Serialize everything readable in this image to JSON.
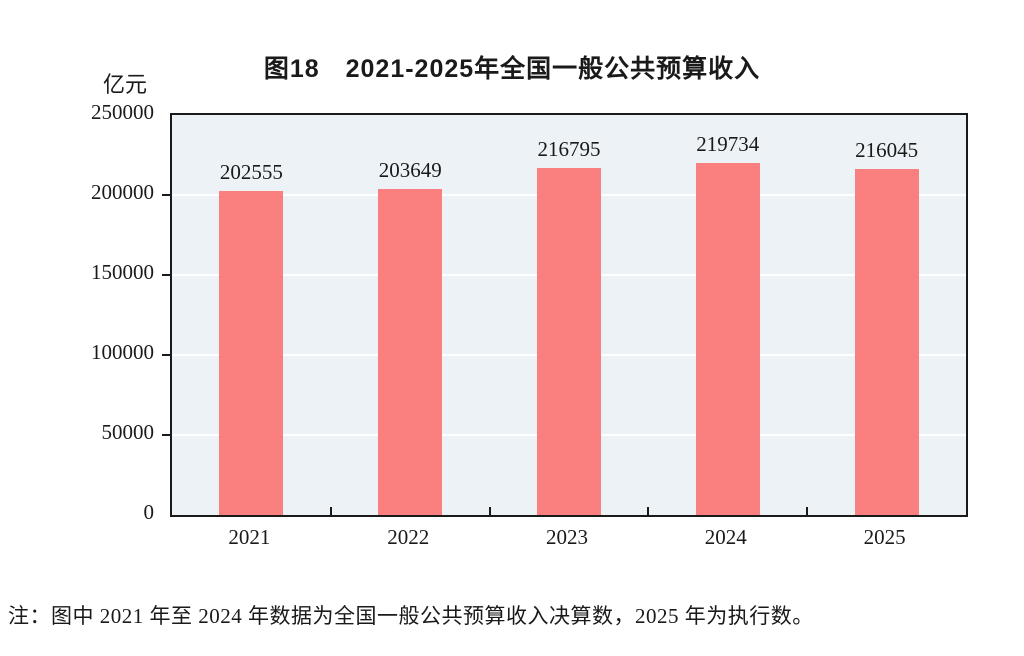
{
  "header": {
    "title": "图18　2021-2025年全国一般公共预算收入",
    "unit_label": "亿元"
  },
  "chart_data": {
    "type": "bar",
    "title": "图18　2021-2025年全国一般公共预算收入",
    "categories": [
      "2021",
      "2022",
      "2023",
      "2024",
      "2025"
    ],
    "values": [
      202555,
      203649,
      216795,
      219734,
      216045
    ],
    "xlabel": "",
    "ylabel": "亿元",
    "ylim": [
      0,
      250000
    ],
    "yticks": [
      0,
      50000,
      100000,
      150000,
      200000,
      250000
    ],
    "grid": true,
    "legend": "none",
    "bar_color": "#FA8080",
    "plot_bg": "#EDF2F6",
    "gridline_color": "#FFFFFF",
    "frame_color": "#1a1a1a"
  },
  "note": "注：图中 2021 年至 2024 年数据为全国一般公共预算收入决算数，2025 年为执行数。"
}
